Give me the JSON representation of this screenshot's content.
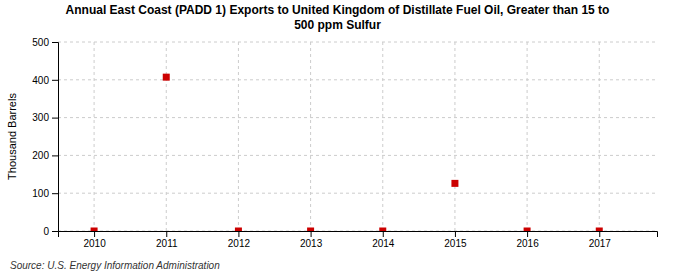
{
  "chart_data": {
    "type": "scatter",
    "title": "Annual East Coast (PADD 1) Exports to United Kingdom of Distillate Fuel Oil, Greater than 15 to\n500 ppm Sulfur",
    "ylabel": "Thousand Barrels",
    "annotations": [
      "Source: U.S. Energy Information Administration"
    ],
    "x": [
      2010,
      2011,
      2012,
      2013,
      2014,
      2015,
      2016,
      2017
    ],
    "values": [
      0,
      407,
      0,
      0,
      0,
      126,
      0,
      0
    ],
    "color": "#cc0000",
    "marker": "square",
    "xlim": [
      2009.5,
      2017.8
    ],
    "xticks": [
      2010,
      2011,
      2012,
      2013,
      2014,
      2015,
      2016,
      2017
    ],
    "ylim": [
      0,
      500
    ],
    "yticks": [
      0,
      100,
      200,
      300,
      400,
      500
    ],
    "grid": true
  }
}
